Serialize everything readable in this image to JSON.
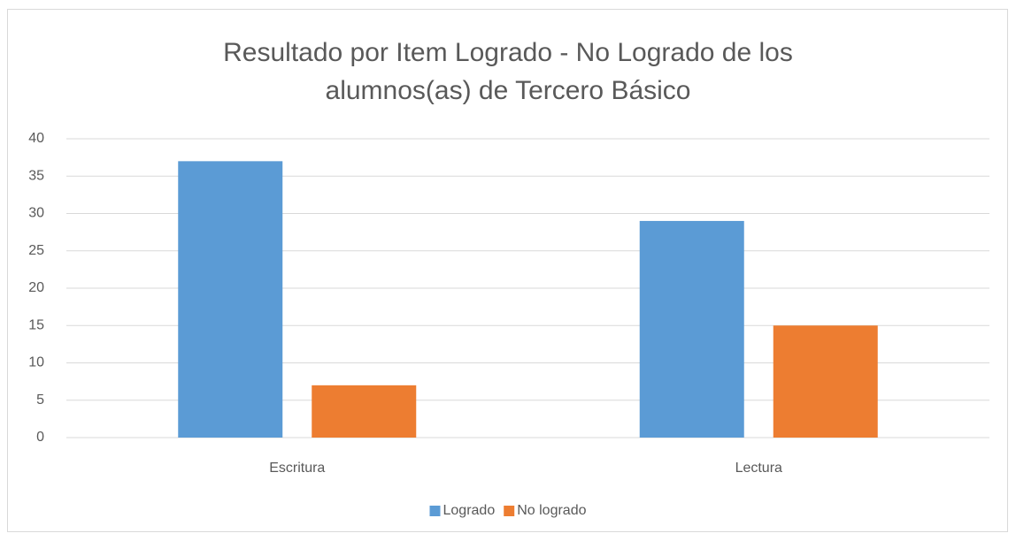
{
  "chart_data": {
    "type": "bar",
    "title": "Resultado por Item Logrado - No Logrado de los alumnos(as) de Tercero Básico",
    "categories": [
      "Escritura",
      "Lectura"
    ],
    "series": [
      {
        "name": "Logrado",
        "color": "#5b9bd5",
        "values": [
          37,
          29
        ]
      },
      {
        "name": "No logrado",
        "color": "#ed7d31",
        "values": [
          7,
          15
        ]
      }
    ],
    "ylim": [
      0,
      40
    ],
    "yticks": [
      0,
      5,
      10,
      15,
      20,
      25,
      30,
      35,
      40
    ],
    "grid": true,
    "legend": "bottom"
  }
}
